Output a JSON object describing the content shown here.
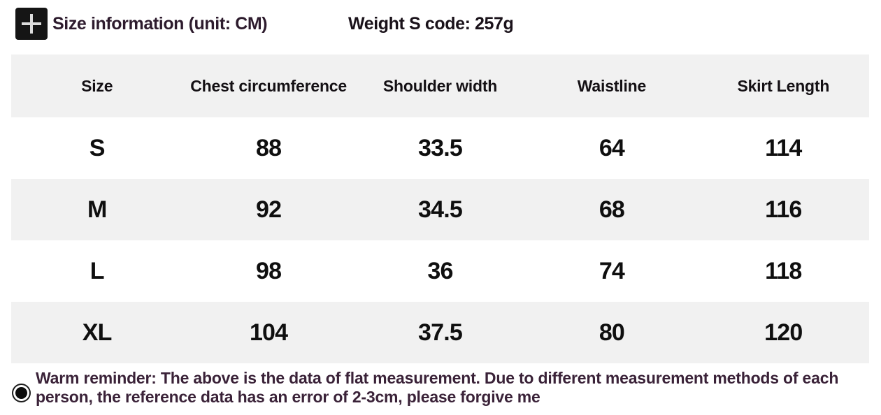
{
  "header": {
    "title": "Size information (unit: CM)",
    "weight_note": "Weight S code: 257g",
    "icons": {
      "plus_icon": "plus-icon"
    }
  },
  "table": {
    "columns": [
      "Size",
      "Chest circumference",
      "Shoulder width",
      "Waistline",
      "Skirt Length"
    ],
    "rows": [
      [
        "S",
        "88",
        "33.5",
        "64",
        "114"
      ],
      [
        "M",
        "92",
        "34.5",
        "68",
        "116"
      ],
      [
        "L",
        "98",
        "36",
        "74",
        "118"
      ],
      [
        "XL",
        "104",
        "37.5",
        "80",
        "120"
      ]
    ]
  },
  "footer": {
    "reminder": "Warm reminder: The above is the data of flat measurement. Due to different measurement methods of each person, the reference data has an error of 2-3cm, please forgive me",
    "icons": {
      "record_icon": "record-icon"
    }
  },
  "colors": {
    "background": "#ffffff",
    "row_stripe": "#f1f1f1",
    "title_text": "#2d1b2d",
    "weight_text": "#1a121a",
    "header_cell_text": "#141014",
    "data_cell_text": "#0f0f0f",
    "reminder_text": "#3a2238",
    "icon_bg": "#151515"
  },
  "chart_data": {
    "type": "table",
    "title": "Size information (unit: CM)",
    "subtitle": "Weight S code: 257g",
    "units": "CM",
    "columns": [
      "Size",
      "Chest circumference",
      "Shoulder width",
      "Waistline",
      "Skirt Length"
    ],
    "rows": [
      [
        "S",
        88,
        33.5,
        64,
        114
      ],
      [
        "M",
        92,
        34.5,
        68,
        116
      ],
      [
        "L",
        98,
        36,
        74,
        118
      ],
      [
        "XL",
        104,
        37.5,
        80,
        120
      ]
    ],
    "note": "Warm reminder: The above is the data of flat measurement. Due to different measurement methods of each person, the reference data has an error of 2-3cm, please forgive me"
  }
}
